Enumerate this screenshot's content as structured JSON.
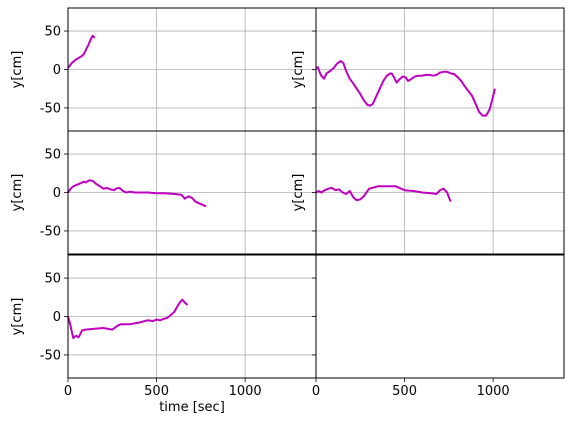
{
  "figure": {
    "colors": {
      "line": "#bf00bf",
      "grid": "#b0b0b0",
      "frame": "#000000",
      "background": "#ffffff"
    },
    "grid": true,
    "shared_x_range": [
      0,
      1400
    ],
    "shared_y_range": [
      -80,
      80
    ],
    "x_tick_values": [
      0,
      500,
      1000
    ],
    "y_tick_values": [
      -50,
      0,
      50
    ]
  },
  "chart_data": [
    {
      "type": "line",
      "position": "row1-left",
      "ylabel": "y[cm]",
      "xlim": [
        0,
        1400
      ],
      "ylim": [
        -80,
        80
      ],
      "grid": true,
      "series": [
        {
          "x": [
            0,
            10,
            20,
            30,
            45,
            60,
            75,
            90,
            100,
            115,
            130,
            140,
            150
          ],
          "y": [
            2,
            5,
            8,
            10,
            13,
            15,
            17,
            20,
            25,
            32,
            40,
            44,
            41
          ]
        }
      ]
    },
    {
      "type": "line",
      "position": "row1-right",
      "ylabel": "y[cm]",
      "xlim": [
        0,
        1400
      ],
      "ylim": [
        -80,
        80
      ],
      "grid": true,
      "series": [
        {
          "x": [
            0,
            10,
            20,
            30,
            45,
            60,
            80,
            100,
            120,
            140,
            155,
            170,
            190,
            210,
            230,
            250,
            270,
            290,
            305,
            320,
            340,
            360,
            380,
            400,
            420,
            430,
            440,
            455,
            470,
            490,
            505,
            520,
            540,
            560,
            580,
            600,
            620,
            640,
            660,
            680,
            700,
            720,
            740,
            760,
            780,
            800,
            820,
            840,
            860,
            880,
            900,
            920,
            940,
            960,
            980,
            1000,
            1010
          ],
          "y": [
            2,
            3,
            -3,
            -8,
            -12,
            -5,
            -2,
            2,
            8,
            11,
            8,
            -2,
            -12,
            -18,
            -25,
            -32,
            -40,
            -46,
            -47,
            -45,
            -35,
            -25,
            -15,
            -8,
            -5,
            -6,
            -10,
            -17,
            -13,
            -9,
            -10,
            -15,
            -12,
            -9,
            -8,
            -8,
            -7,
            -7,
            -8,
            -7,
            -4,
            -3,
            -3,
            -5,
            -6,
            -10,
            -15,
            -22,
            -28,
            -34,
            -44,
            -55,
            -60,
            -60,
            -52,
            -35,
            -25
          ]
        }
      ]
    },
    {
      "type": "line",
      "position": "row2-left",
      "ylabel": "y[cm]",
      "xlim": [
        0,
        1400
      ],
      "ylim": [
        -80,
        80
      ],
      "grid": true,
      "series": [
        {
          "x": [
            0,
            15,
            30,
            50,
            70,
            90,
            100,
            120,
            140,
            160,
            180,
            200,
            220,
            240,
            260,
            270,
            290,
            310,
            330,
            350,
            380,
            400,
            450,
            500,
            550,
            600,
            640,
            660,
            680,
            700,
            720,
            740,
            760,
            780
          ],
          "y": [
            0,
            5,
            8,
            10,
            12,
            14,
            13,
            16,
            15,
            11,
            8,
            5,
            6,
            4,
            3,
            5,
            6,
            2,
            0,
            1,
            0,
            0,
            0,
            -1,
            -1,
            -2,
            -3,
            -8,
            -5,
            -7,
            -12,
            -14,
            -16,
            -18
          ]
        }
      ]
    },
    {
      "type": "line",
      "position": "row2-right",
      "ylabel": "y[cm]",
      "xlim": [
        0,
        1400
      ],
      "ylim": [
        -80,
        80
      ],
      "grid": true,
      "series": [
        {
          "x": [
            0,
            15,
            30,
            50,
            70,
            90,
            110,
            130,
            150,
            170,
            190,
            210,
            230,
            250,
            270,
            300,
            350,
            400,
            450,
            500,
            550,
            600,
            650,
            680,
            700,
            720,
            740,
            760
          ],
          "y": [
            0,
            2,
            0,
            3,
            5,
            6,
            3,
            4,
            0,
            -2,
            2,
            -6,
            -10,
            -9,
            -5,
            5,
            8,
            8,
            8,
            3,
            2,
            0,
            -1,
            -2,
            3,
            5,
            0,
            -12
          ]
        }
      ]
    },
    {
      "type": "line",
      "position": "row3-left",
      "ylabel": "y[cm]",
      "xlabel": "time [sec]",
      "xlim": [
        0,
        1400
      ],
      "ylim": [
        -80,
        80
      ],
      "grid": true,
      "series": [
        {
          "x": [
            0,
            10,
            20,
            30,
            45,
            60,
            80,
            100,
            150,
            200,
            250,
            280,
            300,
            350,
            400,
            450,
            480,
            500,
            520,
            540,
            560,
            580,
            600,
            615,
            630,
            645,
            660,
            675
          ],
          "y": [
            0,
            -8,
            -18,
            -28,
            -25,
            -27,
            -18,
            -17,
            -16,
            -15,
            -17,
            -12,
            -10,
            -10,
            -8,
            -5,
            -6,
            -4,
            -5,
            -3,
            -2,
            2,
            6,
            12,
            18,
            22,
            18,
            15
          ]
        }
      ]
    },
    {
      "type": "line",
      "position": "row3-right",
      "xlim": [
        0,
        1400
      ],
      "ylim": [
        -80,
        80
      ],
      "grid": false,
      "series": []
    }
  ]
}
